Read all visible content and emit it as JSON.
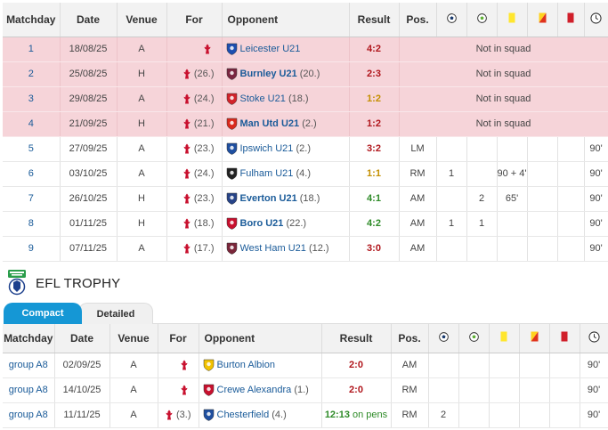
{
  "headers": {
    "matchday": "Matchday",
    "date": "Date",
    "venue": "Venue",
    "for": "For",
    "opponent": "Opponent",
    "result": "Result",
    "pos": "Pos."
  },
  "league_rows": [
    {
      "md": "1",
      "date": "18/08/25",
      "venue": "A",
      "for_rank": "",
      "opp": "Leicester U21",
      "opp_rank": "",
      "opp_bold": false,
      "result": "4:2",
      "res_type": "red",
      "pos": "",
      "goals": "",
      "assists": "",
      "yellow": "",
      "second_yellow": "",
      "red": "",
      "mins": "",
      "note": "Not in squad",
      "crest": "#1d4fb0",
      "crest_icon": "fox-crest-icon",
      "ns": true
    },
    {
      "md": "2",
      "date": "25/08/25",
      "venue": "H",
      "for_rank": "(26.)",
      "opp": "Burnley U21",
      "opp_rank": "(20.)",
      "opp_bold": true,
      "result": "2:3",
      "res_type": "red",
      "pos": "",
      "goals": "",
      "assists": "",
      "yellow": "",
      "second_yellow": "",
      "red": "",
      "mins": "",
      "note": "Not in squad",
      "crest": "#7a2640",
      "crest_icon": "burnley-crest-icon",
      "ns": true
    },
    {
      "md": "3",
      "date": "29/08/25",
      "venue": "A",
      "for_rank": "(24.)",
      "opp": "Stoke U21",
      "opp_rank": "(18.)",
      "opp_bold": false,
      "result": "1:2",
      "res_type": "draw",
      "pos": "",
      "goals": "",
      "assists": "",
      "yellow": "",
      "second_yellow": "",
      "red": "",
      "mins": "",
      "note": "Not in squad",
      "crest": "#d2232a",
      "crest_icon": "stoke-crest-icon",
      "ns": true
    },
    {
      "md": "4",
      "date": "21/09/25",
      "venue": "H",
      "for_rank": "(21.)",
      "opp": "Man Utd U21",
      "opp_rank": "(2.)",
      "opp_bold": true,
      "result": "1:2",
      "res_type": "red",
      "pos": "",
      "goals": "",
      "assists": "",
      "yellow": "",
      "second_yellow": "",
      "red": "",
      "mins": "",
      "note": "Not in squad",
      "crest": "#da291c",
      "crest_icon": "manutd-crest-icon",
      "ns": true
    },
    {
      "md": "5",
      "date": "27/09/25",
      "venue": "A",
      "for_rank": "(23.)",
      "opp": "Ipswich U21",
      "opp_rank": "(2.)",
      "opp_bold": false,
      "result": "3:2",
      "res_type": "red",
      "pos": "LM",
      "goals": "",
      "assists": "",
      "yellow": "",
      "second_yellow": "",
      "red": "",
      "mins": "90'",
      "note": "",
      "crest": "#1f4fa0",
      "crest_icon": "ipswich-crest-icon",
      "ns": false
    },
    {
      "md": "6",
      "date": "03/10/25",
      "venue": "A",
      "for_rank": "(24.)",
      "opp": "Fulham U21",
      "opp_rank": "(4.)",
      "opp_bold": false,
      "result": "1:1",
      "res_type": "draw",
      "pos": "RM",
      "goals": "1",
      "assists": "",
      "yellow": "90 + 4'",
      "second_yellow": "",
      "red": "",
      "mins": "90'",
      "note": "",
      "crest": "#222222",
      "crest_icon": "fulham-crest-icon",
      "ns": false
    },
    {
      "md": "7",
      "date": "26/10/25",
      "venue": "H",
      "for_rank": "(23.)",
      "opp": "Everton U21",
      "opp_rank": "(18.)",
      "opp_bold": true,
      "result": "4:1",
      "res_type": "win",
      "pos": "AM",
      "goals": "",
      "assists": "2",
      "yellow": "65'",
      "second_yellow": "",
      "red": "",
      "mins": "90'",
      "note": "",
      "crest": "#274488",
      "crest_icon": "everton-crest-icon",
      "ns": false
    },
    {
      "md": "8",
      "date": "01/11/25",
      "venue": "H",
      "for_rank": "(18.)",
      "opp": "Boro U21",
      "opp_rank": "(22.)",
      "opp_bold": true,
      "result": "4:2",
      "res_type": "win",
      "pos": "AM",
      "goals": "1",
      "assists": "1",
      "yellow": "",
      "second_yellow": "",
      "red": "",
      "mins": "90'",
      "note": "",
      "crest": "#c8102e",
      "crest_icon": "boro-crest-icon",
      "ns": false
    },
    {
      "md": "9",
      "date": "07/11/25",
      "venue": "A",
      "for_rank": "(17.)",
      "opp": "West Ham U21",
      "opp_rank": "(12.)",
      "opp_bold": false,
      "result": "3:0",
      "res_type": "red",
      "pos": "AM",
      "goals": "",
      "assists": "",
      "yellow": "",
      "second_yellow": "",
      "red": "",
      "mins": "90'",
      "note": "",
      "crest": "#7a263a",
      "crest_icon": "westham-crest-icon",
      "ns": false
    }
  ],
  "section": {
    "title": "EFL TROPHY",
    "logo_icon": "efl-trophy-logo-icon"
  },
  "tabs": {
    "compact": "Compact",
    "detailed": "Detailed"
  },
  "cup_rows": [
    {
      "md": "group A8",
      "date": "02/09/25",
      "venue": "A",
      "for_rank": "",
      "opp": "Burton Albion",
      "opp_rank": "",
      "result": "2:0",
      "res_type": "red",
      "pens": "",
      "pos": "AM",
      "goals": "",
      "assists": "",
      "yellow": "",
      "second_yellow": "",
      "red": "",
      "mins": "90'",
      "crest": "#f2c200",
      "crest_icon": "burton-crest-icon"
    },
    {
      "md": "group A8",
      "date": "14/10/25",
      "venue": "A",
      "for_rank": "",
      "opp": "Crewe Alexandra",
      "opp_rank": "(1.)",
      "result": "2:0",
      "res_type": "red",
      "pens": "",
      "pos": "RM",
      "goals": "",
      "assists": "",
      "yellow": "",
      "second_yellow": "",
      "red": "",
      "mins": "90'",
      "crest": "#c8102e",
      "crest_icon": "crewe-crest-icon"
    },
    {
      "md": "group A8",
      "date": "11/11/25",
      "venue": "A",
      "for_rank": "(3.)",
      "opp": "Chesterfield",
      "opp_rank": "(4.)",
      "result": "12:13",
      "res_type": "win",
      "pens": "on pens",
      "pos": "RM",
      "goals": "2",
      "assists": "",
      "yellow": "",
      "second_yellow": "",
      "red": "",
      "mins": "90'",
      "crest": "#1f4fa0",
      "crest_icon": "chesterfield-crest-icon"
    }
  ],
  "colors": {
    "not_in_squad_row": "#f6d4d9",
    "link": "#1a5b99",
    "win": "#2e8b28",
    "loss": "#b0151b",
    "draw": "#c48f00",
    "tab_active": "#1597d5",
    "liverpool": "#c8102e"
  }
}
